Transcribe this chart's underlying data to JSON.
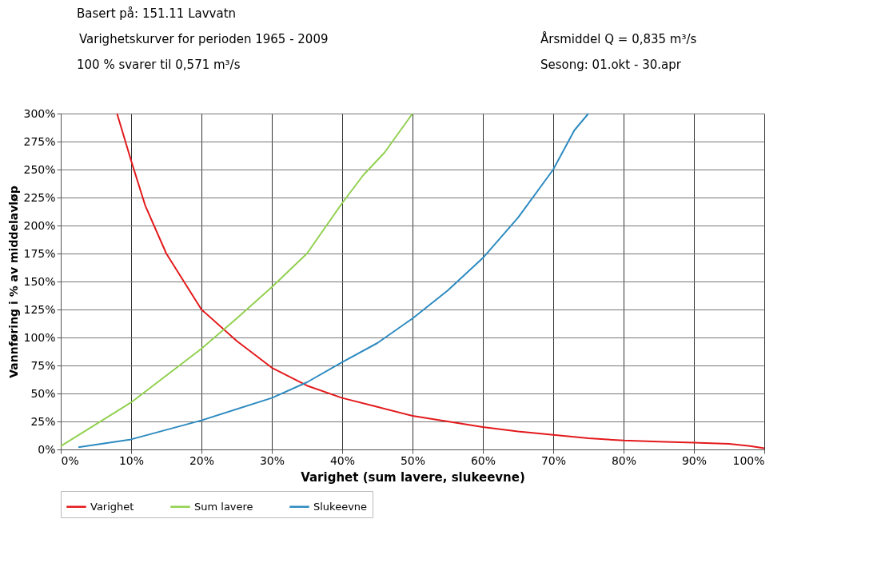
{
  "chart_data": {
    "type": "line",
    "xlabel": "Varighet (sum lavere, slukeevne)",
    "ylabel": "Vannføring i % av middelavløp",
    "annotations": [
      "Basert på: 151.11 Lavvatn",
      "Varighetskurver for perioden 1965 - 2009",
      "100 % svarer til 0,571 m³/s",
      "Årsmiddel Q = 0,835 m³/s",
      "Sesong: 01.okt - 30.apr"
    ],
    "xlim": [
      0,
      100
    ],
    "ylim": [
      0,
      300
    ],
    "xticks": [
      {
        "value": 0,
        "label": "0%"
      },
      {
        "value": 10,
        "label": "10%"
      },
      {
        "value": 20,
        "label": "20%"
      },
      {
        "value": 30,
        "label": "30%"
      },
      {
        "value": 40,
        "label": "40%"
      },
      {
        "value": 50,
        "label": "50%"
      },
      {
        "value": 60,
        "label": "60%"
      },
      {
        "value": 70,
        "label": "70%"
      },
      {
        "value": 80,
        "label": "80%"
      },
      {
        "value": 90,
        "label": "90%"
      },
      {
        "value": 100,
        "label": "100%"
      }
    ],
    "yticks": [
      {
        "value": 0,
        "label": "0%"
      },
      {
        "value": 25,
        "label": "25%"
      },
      {
        "value": 50,
        "label": "50%"
      },
      {
        "value": 75,
        "label": "75%"
      },
      {
        "value": 100,
        "label": "100%"
      },
      {
        "value": 125,
        "label": "125%"
      },
      {
        "value": 150,
        "label": "150%"
      },
      {
        "value": 175,
        "label": "175%"
      },
      {
        "value": 200,
        "label": "200%"
      },
      {
        "value": 225,
        "label": "225%"
      },
      {
        "value": 250,
        "label": "250%"
      },
      {
        "value": 275,
        "label": "275%"
      },
      {
        "value": 300,
        "label": "300%"
      }
    ],
    "grid": true,
    "legend": "bottom",
    "marker": "none",
    "line_style": "solid",
    "series": [
      {
        "name": "Varighet",
        "color": "#e31a1c",
        "x": [
          8,
          10,
          12,
          15,
          18,
          20,
          25,
          30,
          35,
          40,
          45,
          50,
          55,
          60,
          65,
          70,
          75,
          80,
          85,
          90,
          95,
          98,
          100
        ],
        "values": [
          300,
          258,
          218,
          175,
          145,
          125,
          97,
          73,
          57,
          46,
          38,
          30,
          25,
          20,
          16,
          13,
          10,
          8,
          7,
          6,
          5,
          3,
          1
        ]
      },
      {
        "name": "Sum lavere",
        "color": "#92d050",
        "x": [
          0,
          10,
          20,
          25,
          30,
          35,
          40,
          43,
          46,
          50
        ],
        "values": [
          3,
          42,
          90,
          117,
          145,
          175,
          220,
          245,
          265,
          300
        ]
      },
      {
        "name": "Slukeevne",
        "color": "#2e8bc0",
        "x": [
          2.5,
          10,
          20,
          30,
          35,
          40,
          45,
          50,
          55,
          60,
          65,
          70,
          73,
          75
        ],
        "values": [
          2,
          9,
          26,
          46,
          60,
          78,
          95,
          117,
          142,
          171,
          207,
          250,
          285,
          300
        ]
      }
    ]
  }
}
